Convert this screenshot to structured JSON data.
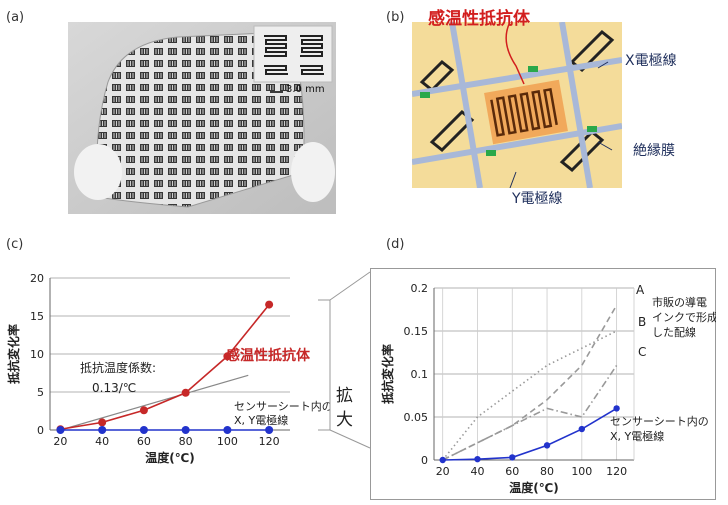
{
  "panels": {
    "a": "(a)",
    "b": "(b)",
    "c": "(c)",
    "d": "(d)"
  },
  "photo_a": {
    "scale_label": "3.0 mm"
  },
  "diagram_b": {
    "title": "感温性抵抗体",
    "x_line": "X電極線",
    "insulation": "絶縁膜",
    "y_line": "Y電極線",
    "colors": {
      "title": "#d21e1e",
      "text": "#1f2f5c"
    }
  },
  "expand_label": "拡\n大",
  "chart_data": [
    {
      "type": "line",
      "panel": "c",
      "title": "",
      "xlabel": "温度(℃)",
      "ylabel": "抵抗変化率",
      "xlim": [
        15,
        130
      ],
      "ylim": [
        0,
        20
      ],
      "x_ticks": [
        20,
        40,
        60,
        80,
        100,
        120
      ],
      "y_ticks": [
        0,
        5,
        10,
        15,
        20
      ],
      "grid": "horizontal",
      "series": [
        {
          "name": "感温性抵抗体",
          "color": "#c62828",
          "x": [
            20,
            40,
            60,
            80,
            100,
            120
          ],
          "y": [
            0.1,
            1.0,
            2.6,
            4.9,
            9.7,
            16.5
          ]
        },
        {
          "name": "センサーシート内のX, Y電極線",
          "color": "#2233cc",
          "x": [
            20,
            40,
            60,
            80,
            100,
            120
          ],
          "y": [
            0.0,
            0.0,
            0.0,
            0.0,
            0.0,
            0.0
          ]
        }
      ],
      "fit_line": {
        "color": "#888888",
        "x": [
          20,
          110
        ],
        "y": [
          0,
          7.2
        ]
      },
      "annotations": {
        "coefficient_line1": "抵抗温度係数:",
        "coefficient_line2": "0.13/℃",
        "resistor_label": "感温性抵抗体",
        "electrode_line1": "センサーシート内の",
        "electrode_line2": "X, Y電極線"
      }
    },
    {
      "type": "line",
      "panel": "d",
      "title": "",
      "xlabel": "温度(℃)",
      "ylabel": "抵抗変化率",
      "xlim": [
        15,
        130
      ],
      "ylim": [
        0,
        0.2
      ],
      "x_ticks": [
        20,
        40,
        60,
        80,
        100,
        120
      ],
      "y_ticks": [
        0,
        0.05,
        0.1,
        0.15,
        0.2
      ],
      "y_tick_labels": [
        "0",
        "0.05",
        "0.1",
        "0.15",
        "0.2"
      ],
      "grid": "both",
      "series": [
        {
          "name": "A",
          "color": "#999999",
          "style": "dashed",
          "x": [
            20,
            60,
            80,
            100,
            120
          ],
          "y": [
            0,
            0.04,
            0.07,
            0.11,
            0.18
          ]
        },
        {
          "name": "B",
          "color": "#999999",
          "style": "dotted",
          "x": [
            20,
            40,
            60,
            80,
            100,
            120
          ],
          "y": [
            0,
            0.05,
            0.08,
            0.11,
            0.13,
            0.15
          ]
        },
        {
          "name": "C",
          "color": "#999999",
          "style": "dashdot",
          "x": [
            20,
            60,
            80,
            100,
            120
          ],
          "y": [
            0,
            0.04,
            0.06,
            0.05,
            0.11
          ]
        },
        {
          "name": "センサーシート内のX, Y電極線",
          "color": "#2233cc",
          "style": "solid",
          "x": [
            20,
            40,
            60,
            80,
            100,
            120
          ],
          "y": [
            0.0,
            0.001,
            0.003,
            0.017,
            0.036,
            0.06
          ]
        }
      ],
      "annotations": {
        "commercial_line1": "市販の導電",
        "commercial_line2": "インクで形成",
        "commercial_line3": "した配線",
        "label_a": "A",
        "label_b": "B",
        "label_c": "C",
        "electrode_line1": "センサーシート内の",
        "electrode_line2": "X, Y電極線"
      }
    }
  ]
}
